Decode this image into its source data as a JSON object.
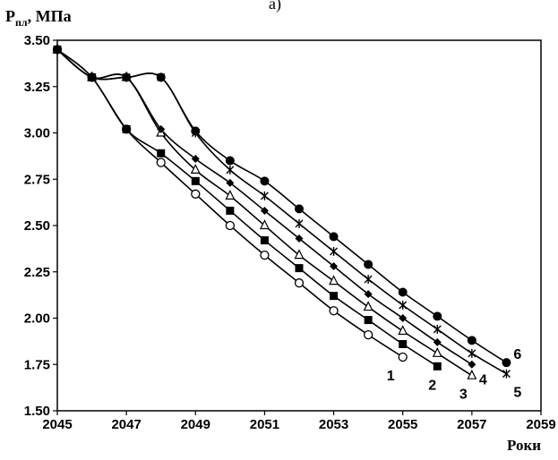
{
  "chart_data": {
    "type": "line",
    "top_label": "а)",
    "ylabel": {
      "main": "P",
      "sub": "пл",
      "rest": ", МПа"
    },
    "xlabel": "Роки",
    "xlim": [
      2045,
      2059
    ],
    "ylim": [
      1.5,
      3.5
    ],
    "xticks": [
      "2045",
      "2047",
      "2049",
      "2051",
      "2053",
      "2055",
      "2057",
      "2059"
    ],
    "yticks": [
      "1.50",
      "1.75",
      "2.00",
      "2.25",
      "2.50",
      "2.75",
      "3.00",
      "3.25",
      "3.50"
    ],
    "grid": false,
    "series": [
      {
        "name": "1",
        "marker": "circle-open",
        "x": [
          2045,
          2046,
          2047,
          2048,
          2049,
          2050,
          2051,
          2052,
          2053,
          2054,
          2055
        ],
        "y": [
          3.45,
          3.3,
          3.02,
          2.84,
          2.67,
          2.5,
          2.34,
          2.19,
          2.04,
          1.91,
          1.79
        ]
      },
      {
        "name": "2",
        "marker": "square-filled",
        "x": [
          2045,
          2046,
          2047,
          2048,
          2049,
          2050,
          2051,
          2052,
          2053,
          2054,
          2055,
          2056
        ],
        "y": [
          3.45,
          3.3,
          3.02,
          2.89,
          2.74,
          2.58,
          2.42,
          2.27,
          2.12,
          1.99,
          1.86,
          1.74
        ]
      },
      {
        "name": "3",
        "marker": "triangle-open",
        "x": [
          2045,
          2046,
          2047,
          2048,
          2049,
          2050,
          2051,
          2052,
          2053,
          2054,
          2055,
          2056,
          2057
        ],
        "y": [
          3.45,
          3.3,
          3.3,
          3.0,
          2.8,
          2.66,
          2.5,
          2.34,
          2.2,
          2.06,
          1.93,
          1.81,
          1.69
        ]
      },
      {
        "name": "4",
        "marker": "diamond-filled",
        "x": [
          2045,
          2046,
          2047,
          2048,
          2049,
          2050,
          2051,
          2052,
          2053,
          2054,
          2055,
          2056,
          2057
        ],
        "y": [
          3.45,
          3.3,
          3.3,
          3.02,
          2.86,
          2.73,
          2.58,
          2.43,
          2.28,
          2.13,
          2.0,
          1.87,
          1.75
        ]
      },
      {
        "name": "5",
        "marker": "star",
        "x": [
          2045,
          2046,
          2047,
          2048,
          2049,
          2050,
          2051,
          2052,
          2053,
          2054,
          2055,
          2056,
          2057,
          2058
        ],
        "y": [
          3.45,
          3.3,
          3.3,
          3.3,
          3.0,
          2.8,
          2.66,
          2.51,
          2.36,
          2.21,
          2.07,
          1.94,
          1.81,
          1.7
        ]
      },
      {
        "name": "6",
        "marker": "circle-filled",
        "x": [
          2045,
          2046,
          2047,
          2048,
          2049,
          2050,
          2051,
          2052,
          2053,
          2054,
          2055,
          2056,
          2057,
          2058
        ],
        "y": [
          3.45,
          3.3,
          3.3,
          3.3,
          3.01,
          2.85,
          2.74,
          2.59,
          2.44,
          2.29,
          2.14,
          2.01,
          1.88,
          1.76
        ]
      }
    ],
    "colors": {
      "line": "#000000",
      "background": "#ffffff"
    }
  }
}
